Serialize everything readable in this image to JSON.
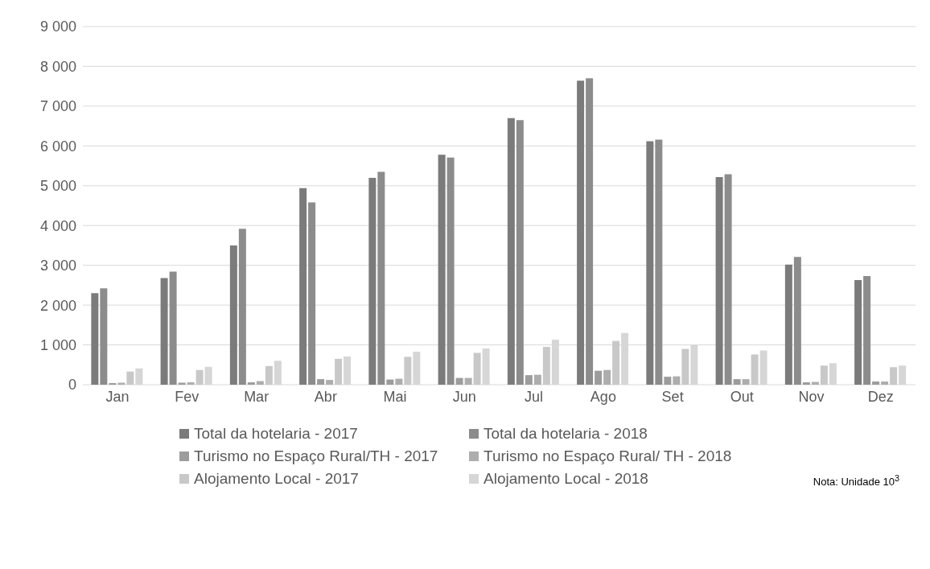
{
  "chart_data": {
    "type": "bar",
    "categories": [
      "Jan",
      "Fev",
      "Mar",
      "Abr",
      "Mai",
      "Jun",
      "Jul",
      "Ago",
      "Set",
      "Out",
      "Nov",
      "Dez"
    ],
    "series": [
      {
        "name": "Total da hotelaria - 2017",
        "color": "#7b7b7b",
        "values": [
          2300,
          2680,
          3500,
          4940,
          5200,
          5780,
          6700,
          7640,
          6120,
          5220,
          3020,
          2630
        ]
      },
      {
        "name": "Total da hotelaria - 2018",
        "color": "#8c8c8c",
        "values": [
          2420,
          2840,
          3920,
          4580,
          5350,
          5710,
          6650,
          7700,
          6160,
          5290,
          3210,
          2730
        ]
      },
      {
        "name": "Turismo no Espaço Rural/TH - 2017",
        "color": "#9c9c9c",
        "values": [
          40,
          50,
          60,
          140,
          130,
          170,
          240,
          350,
          200,
          140,
          60,
          80
        ]
      },
      {
        "name": "Turismo no Espaço Rural/ TH - 2018",
        "color": "#adadad",
        "values": [
          50,
          60,
          90,
          120,
          150,
          170,
          250,
          370,
          210,
          140,
          70,
          80
        ]
      },
      {
        "name": "Alojamento Local - 2017",
        "color": "#c8c8c8",
        "values": [
          330,
          370,
          470,
          650,
          700,
          800,
          950,
          1100,
          900,
          760,
          480,
          440
        ]
      },
      {
        "name": "Alojamento Local - 2018",
        "color": "#d6d6d6",
        "values": [
          410,
          450,
          600,
          710,
          830,
          910,
          1130,
          1300,
          1000,
          860,
          540,
          480
        ]
      }
    ],
    "ylim": [
      0,
      9000
    ],
    "yticks": [
      0,
      {
        "value": 1000,
        "label": "1 000"
      },
      {
        "value": 2000,
        "label": "2 000"
      },
      {
        "value": 3000,
        "label": "3 000"
      },
      {
        "value": 4000,
        "label": "4 000"
      },
      {
        "value": 5000,
        "label": "5 000"
      },
      {
        "value": 6000,
        "label": "6 000"
      },
      {
        "value": 7000,
        "label": "7 000"
      },
      {
        "value": 8000,
        "label": "8 000"
      },
      {
        "value": 9000,
        "label": "9 000"
      }
    ],
    "grid": "y",
    "legend": "bottom",
    "annotations": [
      "Nota: Unidade 10$^{3}$"
    ]
  }
}
